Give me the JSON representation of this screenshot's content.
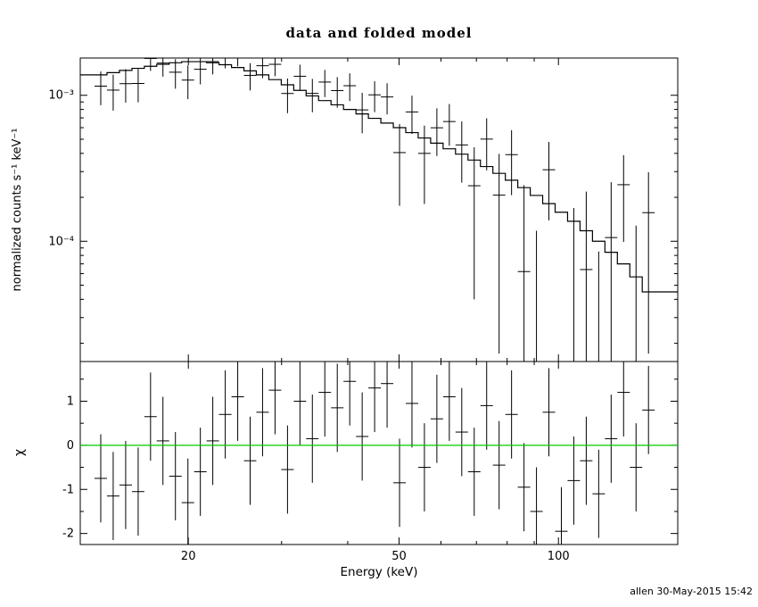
{
  "page": {
    "background": "#ffffff",
    "foreground": "#000000"
  },
  "footer": {
    "timestamp": "allen 30-May-2015 15:42"
  },
  "chart_data": {
    "type": "scatter",
    "title": "data and folded model",
    "xlabel": "Energy (keV)",
    "x_scale": "log",
    "x_range": [
      12.5,
      168
    ],
    "x_ticks": [
      {
        "value": 20,
        "label": "20"
      },
      {
        "value": 50,
        "label": "50"
      },
      {
        "value": 100,
        "label": "100"
      }
    ],
    "x_minor_ticks": [
      30,
      40,
      60,
      70,
      80,
      90
    ],
    "top_panel": {
      "ylabel": "normalized counts s⁻¹ keV⁻¹",
      "y_scale": "log",
      "y_range": [
        1.5e-05,
        0.0018
      ],
      "y_ticks": [
        {
          "value": 0.001,
          "label": "10⁻³"
        },
        {
          "value": 0.0001,
          "label": "10⁻⁴"
        }
      ],
      "y_minor_ticks": [
        2e-05,
        3e-05,
        4e-05,
        5e-05,
        6e-05,
        7e-05,
        8e-05,
        9e-05,
        0.0002,
        0.0003,
        0.0004,
        0.0005,
        0.0006,
        0.0007,
        0.0008,
        0.0009
      ]
    },
    "bottom_panel": {
      "ylabel": "χ",
      "y_scale": "linear",
      "y_range": [
        -2.25,
        1.9
      ],
      "y_ticks": [
        {
          "value": 1,
          "label": "1"
        },
        {
          "value": 0,
          "label": "0"
        },
        {
          "value": -1,
          "label": "-1"
        },
        {
          "value": -2,
          "label": "-2"
        }
      ],
      "y_minor_ticks": [
        -1.5,
        -0.5,
        0.5,
        1.5
      ],
      "zero_line_color": "#00cc00"
    },
    "bins": {
      "edges": [
        13.3,
        14.04,
        14.82,
        15.65,
        16.52,
        17.43,
        18.4,
        19.43,
        20.51,
        21.65,
        22.85,
        24.13,
        25.47,
        26.88,
        28.38,
        29.96,
        31.63,
        33.38,
        35.24,
        37.2,
        39.27,
        41.46,
        43.76,
        46.2,
        48.77,
        51.48,
        54.34,
        57.36,
        60.56,
        63.92,
        67.48,
        71.23,
        75.2,
        79.38,
        83.79,
        88.46,
        93.38,
        98.57,
        104.05,
        109.84,
        115.95,
        122.4,
        129.21,
        136.4,
        143.98,
        152.0
      ]
    },
    "series": [
      {
        "name": "data",
        "role": "data",
        "values": [
          0.001155,
          0.001085,
          0.001201,
          0.001205,
          0.001788,
          0.001662,
          0.001439,
          0.001271,
          0.001508,
          0.001701,
          0.00183,
          0.001875,
          0.001369,
          0.001594,
          0.00163,
          0.001029,
          0.00135,
          0.00103,
          0.001232,
          0.001077,
          0.001163,
          0.000794,
          0.001007,
          0.000974,
          0.000405,
          0.000769,
          0.0004,
          0.000599,
          0.000661,
          0.000457,
          0.00024,
          0.000501,
          0.000207,
          0.000392,
          6.2e-05,
          -5.7e-05,
          0.000309,
          -0.000164,
          9e-06,
          6.4e-05,
          -6.5e-05,
          0.000106,
          0.000244,
          -1.4e-05,
          0.000157
        ]
      },
      {
        "name": "data 1-sigma error",
        "role": "sigma",
        "values": [
          0.0003,
          0.0003,
          0.00031,
          0.00031,
          0.00032,
          0.00032,
          0.00033,
          0.00033,
          0.00032,
          0.00031,
          0.0003,
          0.000295,
          0.00029,
          0.000285,
          0.00028,
          0.000275,
          0.00027,
          0.000265,
          0.00026,
          0.000255,
          0.00025,
          0.000245,
          0.00024,
          0.000235,
          0.00023,
          0.000225,
          0.00022,
          0.000215,
          0.00021,
          0.000205,
          0.0002,
          0.000195,
          0.00019,
          0.000185,
          0.00018,
          0.000175,
          0.00017,
          0.000165,
          0.00016,
          0.000155,
          0.00015,
          0.000148,
          0.000145,
          0.000142,
          0.00014
        ]
      },
      {
        "name": "folded model",
        "role": "model",
        "values": [
          0.00138,
          0.00143,
          0.00148,
          0.00153,
          0.00158,
          0.00163,
          0.00167,
          0.0017,
          0.0017,
          0.00167,
          0.00162,
          0.00155,
          0.00147,
          0.00138,
          0.00128,
          0.00118,
          0.00108,
          0.00099,
          0.00092,
          0.00086,
          0.0008,
          0.000745,
          0.000695,
          0.000645,
          0.0006,
          0.000555,
          0.00051,
          0.00047,
          0.00043,
          0.000395,
          0.00036,
          0.000325,
          0.000292,
          0.000262,
          0.000233,
          0.000206,
          0.000181,
          0.000158,
          0.000137,
          0.000118,
          0.0001,
          8.4e-05,
          7e-05,
          5.7e-05,
          4.5e-05
        ]
      },
      {
        "name": "chi residuals",
        "role": "chi",
        "values": [
          -0.75,
          -1.15,
          -0.9,
          -1.05,
          0.65,
          0.1,
          -0.7,
          -1.3,
          -0.6,
          0.1,
          0.7,
          1.1,
          -0.35,
          0.75,
          1.25,
          -0.55,
          1.0,
          0.15,
          1.2,
          0.85,
          1.45,
          0.2,
          1.3,
          1.4,
          -0.85,
          0.95,
          -0.5,
          0.6,
          1.1,
          0.3,
          -0.6,
          0.9,
          -0.45,
          0.7,
          -0.95,
          -1.5,
          0.75,
          -1.95,
          -0.8,
          -0.35,
          -1.1,
          0.15,
          1.2,
          -0.5,
          0.8
        ]
      }
    ]
  }
}
